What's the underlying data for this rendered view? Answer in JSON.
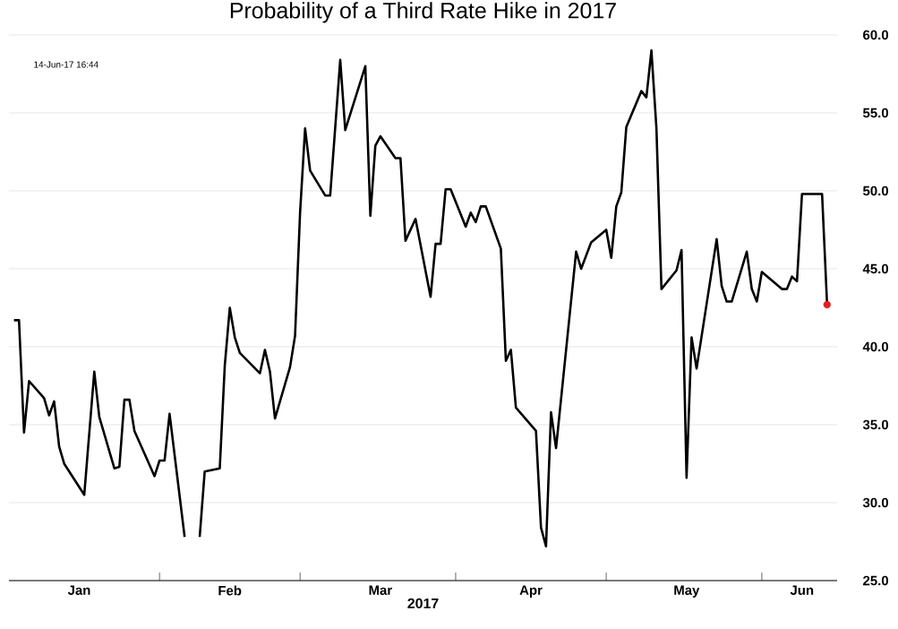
{
  "chart_data": {
    "type": "line",
    "title": "Probability of a Third Rate Hike in 2017",
    "xlabel": "2017",
    "annotations": [
      "14-Jun-17 16:44"
    ],
    "xlim": [
      "2017-01-02",
      "2017-06-16"
    ],
    "xticks": [
      {
        "value": "2017-01-16",
        "label": "Jan"
      },
      {
        "value": "2017-02-01",
        "label": null
      },
      {
        "value": "2017-02-15",
        "label": "Feb"
      },
      {
        "value": "2017-03-01",
        "label": null
      },
      {
        "value": "2017-03-17",
        "label": "Mar"
      },
      {
        "value": "2017-04-01",
        "label": null
      },
      {
        "value": "2017-04-16",
        "label": "Apr"
      },
      {
        "value": "2017-05-01",
        "label": null
      },
      {
        "value": "2017-05-17",
        "label": "May"
      },
      {
        "value": "2017-06-01",
        "label": null
      },
      {
        "value": "2017-06-09",
        "label": "Jun"
      }
    ],
    "ylim": [
      25,
      60
    ],
    "yticks": [
      {
        "value": 25,
        "label": "25.0"
      },
      {
        "value": 30,
        "label": "30.0"
      },
      {
        "value": 35,
        "label": "35.0"
      },
      {
        "value": 40,
        "label": "40.0"
      },
      {
        "value": 45,
        "label": "45.0"
      },
      {
        "value": 50,
        "label": "50.0"
      },
      {
        "value": 55,
        "label": "55.0"
      },
      {
        "value": 60,
        "label": "60.0"
      }
    ],
    "grid": "y",
    "series": [
      {
        "type": "line",
        "color": "#000000",
        "x": [
          "2017-01-03",
          "2017-01-04",
          "2017-01-05",
          "2017-01-06",
          "2017-01-09",
          "2017-01-10",
          "2017-01-11",
          "2017-01-12",
          "2017-01-13",
          "2017-01-17",
          "2017-01-19",
          "2017-01-20",
          "2017-01-23",
          "2017-01-24",
          "2017-01-25",
          "2017-01-26",
          "2017-01-27",
          "2017-01-31",
          "2017-02-01",
          "2017-02-02",
          "2017-02-03",
          "2017-02-06",
          "2017-02-08",
          "2017-02-09",
          "2017-02-10",
          "2017-02-13",
          "2017-02-14",
          "2017-02-15",
          "2017-02-16",
          "2017-02-17",
          "2017-02-21",
          "2017-02-22",
          "2017-02-23",
          "2017-02-24",
          "2017-02-27",
          "2017-02-28",
          "2017-03-01",
          "2017-03-02",
          "2017-03-03",
          "2017-03-06",
          "2017-03-07",
          "2017-03-09",
          "2017-03-10",
          "2017-03-14",
          "2017-03-15",
          "2017-03-16",
          "2017-03-17",
          "2017-03-20",
          "2017-03-21",
          "2017-03-22",
          "2017-03-24",
          "2017-03-27",
          "2017-03-28",
          "2017-03-29",
          "2017-03-30",
          "2017-03-31",
          "2017-04-03",
          "2017-04-04",
          "2017-04-05",
          "2017-04-06",
          "2017-04-07",
          "2017-04-10",
          "2017-04-11",
          "2017-04-12",
          "2017-04-13",
          "2017-04-17",
          "2017-04-18",
          "2017-04-19",
          "2017-04-20",
          "2017-04-21",
          "2017-04-25",
          "2017-04-26",
          "2017-04-28",
          "2017-05-01",
          "2017-05-02",
          "2017-05-03",
          "2017-05-04",
          "2017-05-05",
          "2017-05-08",
          "2017-05-09",
          "2017-05-10",
          "2017-05-11",
          "2017-05-12",
          "2017-05-15",
          "2017-05-16",
          "2017-05-17",
          "2017-05-18",
          "2017-05-19",
          "2017-05-23",
          "2017-05-24",
          "2017-05-25",
          "2017-05-26",
          "2017-05-29",
          "2017-05-30",
          "2017-05-31",
          "2017-06-01",
          "2017-06-05",
          "2017-06-06",
          "2017-06-07",
          "2017-06-08",
          "2017-06-09",
          "2017-06-13",
          "2017-06-14"
        ],
        "values": [
          41.7,
          41.7,
          34.5,
          37.8,
          36.7,
          35.6,
          36.5,
          33.6,
          32.5,
          30.5,
          38.4,
          35.5,
          32.2,
          32.3,
          36.6,
          36.6,
          34.6,
          31.7,
          32.7,
          32.7,
          35.7,
          27.8,
          null,
          27.8,
          32.0,
          32.2,
          38.8,
          42.5,
          40.6,
          39.6,
          38.3,
          39.8,
          38.4,
          35.4,
          38.7,
          40.7,
          48.6,
          54.0,
          51.3,
          49.7,
          49.7,
          58.4,
          53.9,
          58.0,
          48.4,
          52.9,
          53.5,
          52.1,
          52.1,
          46.8,
          48.2,
          43.2,
          46.6,
          46.6,
          50.1,
          50.1,
          47.7,
          48.6,
          48.0,
          49.0,
          49.0,
          46.3,
          39.1,
          39.8,
          36.1,
          34.6,
          28.4,
          27.2,
          35.8,
          33.5,
          46.1,
          45.0,
          46.7,
          47.5,
          45.7,
          49.0,
          49.9,
          54.1,
          56.4,
          56.0,
          59.0,
          54.0,
          43.7,
          44.9,
          46.2,
          31.6,
          40.6,
          38.6,
          46.9,
          43.9,
          42.9,
          42.9,
          46.1,
          43.7,
          42.9,
          44.8,
          43.7,
          43.7,
          44.5,
          44.2,
          49.8,
          49.8,
          42.7
        ]
      },
      {
        "type": "scatter",
        "color": "#e02020",
        "x": [
          "2017-06-14"
        ],
        "values": [
          42.7
        ]
      }
    ]
  }
}
